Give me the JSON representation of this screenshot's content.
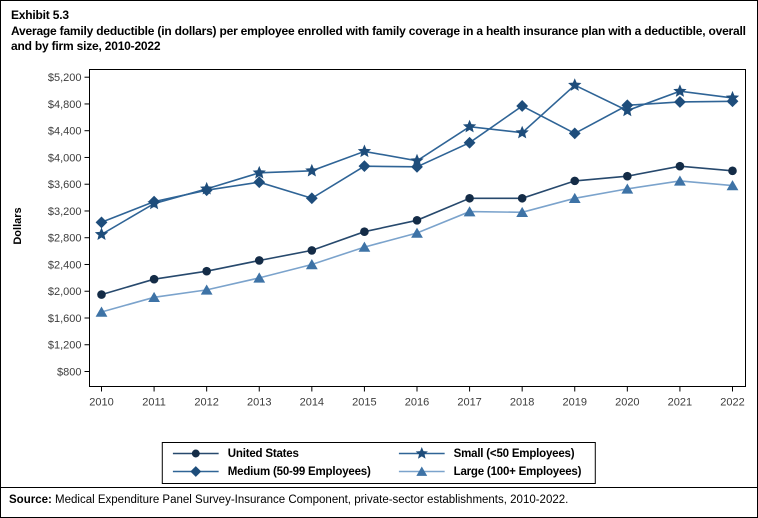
{
  "header": {
    "exhibit_label": "Exhibit 5.3",
    "title": "Average family deductible (in dollars) per employee enrolled with family coverage in a health insurance plan with a deductible, overall and by firm size, 2010-2022"
  },
  "chart_data": {
    "type": "line",
    "title": "Average family deductible (in dollars) per employee enrolled with family coverage in a health insurance plan with a deductible, overall and by firm size, 2010-2022",
    "xlabel": "",
    "ylabel": "Dollars",
    "x": [
      "2010",
      "2011",
      "2012",
      "2013",
      "2014",
      "2015",
      "2016",
      "2017",
      "2018",
      "2019",
      "2020",
      "2021",
      "2022"
    ],
    "ylim": [
      800,
      5200
    ],
    "ytick_values": [
      800,
      1200,
      1600,
      2000,
      2400,
      2800,
      3200,
      3600,
      4000,
      4400,
      4800,
      5200
    ],
    "ytick_labels": [
      "$800",
      "$1,200",
      "$1,600",
      "$2,000",
      "$2,400",
      "$2,800",
      "$3,200",
      "$3,600",
      "$4,000",
      "$4,400",
      "$4,800",
      "$5,200"
    ],
    "grid": false,
    "legend_position": "bottom",
    "series": [
      {
        "name": "United States",
        "marker": "circle",
        "marker_color": "#142c47",
        "line_color": "#27496d",
        "values": [
          1950,
          2180,
          2300,
          2460,
          2610,
          2890,
          3060,
          3390,
          3390,
          3650,
          3720,
          3870,
          3800
        ]
      },
      {
        "name": "Medium (50-99 Employees)",
        "marker": "diamond",
        "marker_color": "#1e4d7b",
        "line_color": "#2f6496",
        "values": [
          3030,
          3340,
          3510,
          3630,
          3390,
          3870,
          3860,
          4220,
          4770,
          4360,
          4780,
          4830,
          4840
        ]
      },
      {
        "name": "Small (<50 Employees)",
        "marker": "star",
        "marker_color": "#1e4d7b",
        "line_color": "#2f6496",
        "values": [
          2850,
          3310,
          3530,
          3770,
          3800,
          4090,
          3950,
          4460,
          4370,
          5080,
          4700,
          4990,
          4890
        ]
      },
      {
        "name": "Large (100+ Employees)",
        "marker": "triangle",
        "marker_color": "#3e73a6",
        "line_color": "#7ba3cc",
        "values": [
          1690,
          1910,
          2020,
          2200,
          2400,
          2660,
          2870,
          3190,
          3180,
          3390,
          3530,
          3650,
          3580
        ]
      }
    ],
    "axis_text_color": "#3d3d3d"
  },
  "source": {
    "label": "Source:",
    "text": "Medical Expenditure Panel Survey-Insurance Component, private-sector establishments, 2010-2022."
  }
}
